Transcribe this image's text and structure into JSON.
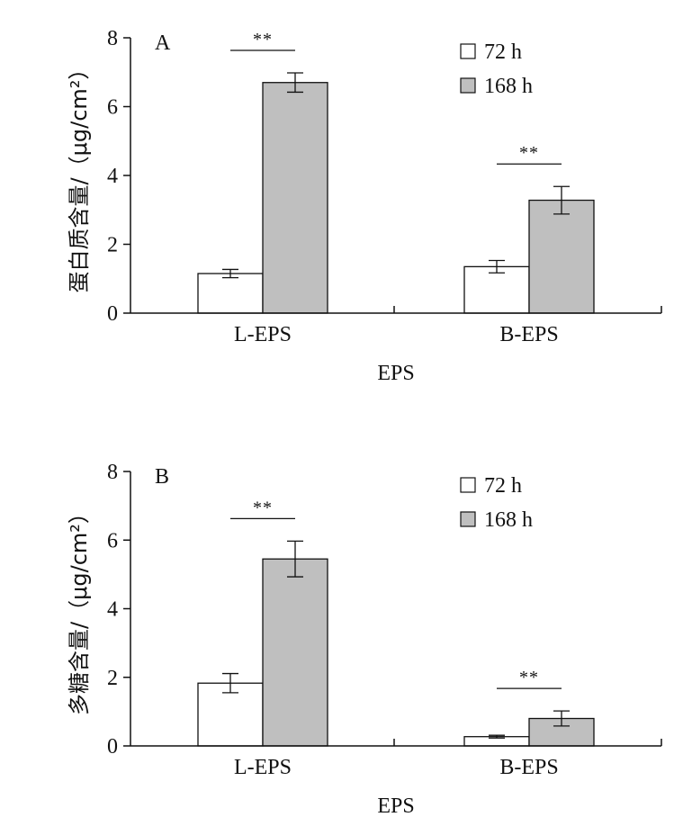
{
  "colors": {
    "series_72h": "#ffffff",
    "series_168h": "#bfbfbf",
    "stroke": "#111111"
  },
  "chart_data": [
    {
      "type": "bar",
      "panel_label": "A",
      "categories": [
        "L-EPS",
        "B-EPS"
      ],
      "series": [
        {
          "name": "72 h",
          "values": [
            1.15,
            1.35
          ],
          "errors": [
            0.12,
            0.18
          ]
        },
        {
          "name": "168 h",
          "values": [
            6.7,
            3.28
          ],
          "errors": [
            0.28,
            0.4
          ]
        }
      ],
      "significance": [
        "**",
        "**"
      ],
      "xlabel": "EPS",
      "ylabel": "蛋白质含量/（μg/cm²）",
      "ylim": [
        0,
        8
      ],
      "yticks": [
        "0",
        "2",
        "4",
        "6",
        "8"
      ],
      "legend_position": "top-right",
      "grid": false
    },
    {
      "type": "bar",
      "panel_label": "B",
      "categories": [
        "L-EPS",
        "B-EPS"
      ],
      "series": [
        {
          "name": "72 h",
          "values": [
            1.83,
            0.27
          ],
          "errors": [
            0.28,
            0.04
          ]
        },
        {
          "name": "168 h",
          "values": [
            5.45,
            0.8
          ],
          "errors": [
            0.52,
            0.22
          ]
        }
      ],
      "significance": [
        "**",
        "**"
      ],
      "xlabel": "EPS",
      "ylabel": "多糖含量/（μg/cm²）",
      "ylim": [
        0,
        8
      ],
      "yticks": [
        "0",
        "2",
        "4",
        "6",
        "8"
      ],
      "legend_position": "top-right",
      "grid": false
    }
  ]
}
